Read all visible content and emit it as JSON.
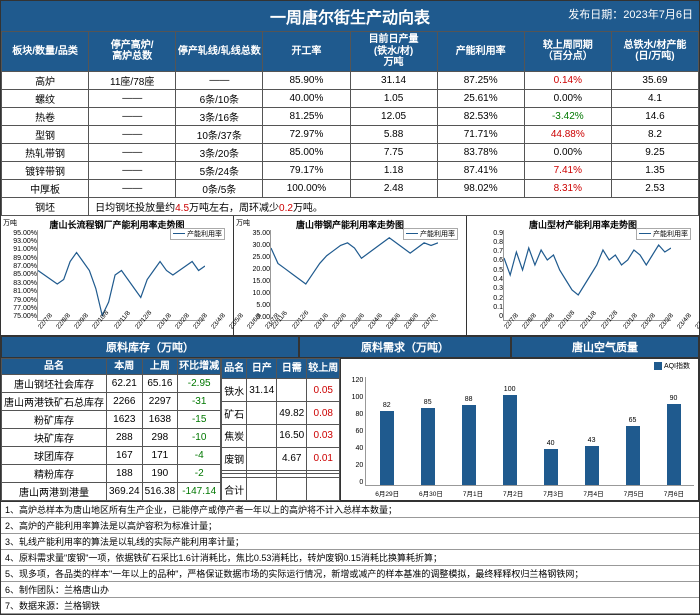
{
  "title": "一周唐尔街生产动向表",
  "pubdate_label": "发布日期：",
  "pubdate": "2023年7月6日",
  "main_table": {
    "headers": [
      "板块/数量/品类",
      "停产高炉/\n高炉总数",
      "停产轧线/轧线总数",
      "开工率",
      "目前日产量\n(铁水/材)\n万吨",
      "产能利用率",
      "较上周同期\n（百分点）",
      "总铁水/材产能\n(日/万吨)"
    ],
    "rows": [
      {
        "c": [
          "高炉",
          "11座/78座",
          "——",
          "85.90%",
          "31.14",
          "87.25%",
          "0.14%",
          "35.69"
        ],
        "col6_color": "red"
      },
      {
        "c": [
          "螺纹",
          "——",
          "6条/10条",
          "40.00%",
          "1.05",
          "25.61%",
          "0.00%",
          "4.1"
        ],
        "col6_color": ""
      },
      {
        "c": [
          "热卷",
          "——",
          "3条/16条",
          "81.25%",
          "12.05",
          "82.53%",
          "-3.42%",
          "14.6"
        ],
        "col6_color": "green"
      },
      {
        "c": [
          "型钢",
          "——",
          "10条/37条",
          "72.97%",
          "5.88",
          "71.71%",
          "44.88%",
          "8.2"
        ],
        "col6_color": "red"
      },
      {
        "c": [
          "热轧带钢",
          "——",
          "3条/20条",
          "85.00%",
          "7.75",
          "83.78%",
          "0.00%",
          "9.25"
        ],
        "col6_color": ""
      },
      {
        "c": [
          "镀锌带钢",
          "——",
          "5条/24条",
          "79.17%",
          "1.18",
          "87.41%",
          "7.41%",
          "1.35"
        ],
        "col6_color": "red"
      },
      {
        "c": [
          "中厚板",
          "——",
          "0条/5条",
          "100.00%",
          "2.48",
          "98.02%",
          "8.31%",
          "2.53"
        ],
        "col6_color": "red"
      }
    ],
    "footer_label": "钢坯",
    "footer_text": "日均钢坯投放量约4.5万吨左右，周环减少0.2万吨。"
  },
  "chart1": {
    "title": "唐山长流程钢厂产能利用率走势图",
    "legend": "产能利用率",
    "yunit": "万吨",
    "ylabels": [
      "95.00%",
      "93.00%",
      "91.00%",
      "89.00%",
      "87.00%",
      "85.00%",
      "83.00%",
      "81.00%",
      "79.00%",
      "77.00%",
      "75.00%"
    ],
    "xlabels": [
      "22/7/8",
      "22/8/8",
      "22/9/8",
      "22/10/8",
      "22/11/8",
      "22/12/8",
      "23/1/8",
      "23/2/8",
      "23/3/8",
      "23/4/8",
      "23/5/8",
      "23/6/8",
      "23/7/8"
    ],
    "points": [
      86,
      85,
      84,
      83,
      84,
      88,
      90,
      88,
      86,
      82,
      76,
      79,
      85,
      86,
      84,
      82,
      80,
      84,
      86,
      88,
      86,
      85,
      86,
      87,
      88,
      86,
      87
    ],
    "ymin": 75,
    "ymax": 95,
    "line_color": "#1f5a8e"
  },
  "chart2": {
    "title": "唐山带钢产能利用率走势图",
    "legend": "产能利用率",
    "yunit": "万吨",
    "ylabels": [
      "35.00",
      "30.00",
      "25.00",
      "20.00",
      "15.00",
      "10.00",
      "5.00",
      "0.00"
    ],
    "xlabels": [
      "22/11/6",
      "22/12/6",
      "23/1/6",
      "23/2/6",
      "23/3/6",
      "23/4/6",
      "23/5/6",
      "23/6/6",
      "23/7/6"
    ],
    "points": [
      28,
      22,
      20,
      18,
      16,
      14,
      18,
      22,
      25,
      27,
      29,
      30,
      28,
      24,
      26,
      28,
      30,
      32,
      30,
      28,
      26,
      28,
      30,
      29,
      30
    ],
    "ymin": 0,
    "ymax": 35,
    "line_color": "#1f5a8e"
  },
  "chart3": {
    "title": "唐山型材产能利用率走势图",
    "legend": "产能利用率",
    "yunit": "",
    "ylabels": [
      "0.9",
      "0.8",
      "0.7",
      "0.6",
      "0.5",
      "0.4",
      "0.3",
      "0.2",
      "0.1",
      "0"
    ],
    "xlabels": [
      "22/7/8",
      "22/8/8",
      "22/9/8",
      "22/10/8",
      "22/11/8",
      "22/12/8",
      "23/1/8",
      "23/2/8",
      "23/3/8",
      "23/4/8",
      "23/5/8",
      "23/6/8",
      "23/7/8"
    ],
    "points": [
      0.62,
      0.45,
      0.68,
      0.5,
      0.72,
      0.55,
      0.7,
      0.6,
      0.65,
      0.5,
      0.4,
      0.3,
      0.25,
      0.35,
      0.45,
      0.55,
      0.7,
      0.6,
      0.65,
      0.55,
      0.6,
      0.7,
      0.65,
      0.55,
      0.65,
      0.75,
      0.68,
      0.72
    ],
    "ymin": 0,
    "ymax": 0.9,
    "line_color": "#1f5a8e"
  },
  "section_headers": [
    "原料库存（万吨）",
    "原料需求（万吨）",
    "唐山空气质量"
  ],
  "inventory": {
    "headers": [
      "品名",
      "本周",
      "上周",
      "环比增减"
    ],
    "rows": [
      [
        "唐山钢坯社会库存",
        "62.21",
        "65.16",
        "-2.95"
      ],
      [
        "唐山两港铁矿石总库存",
        "2266",
        "2297",
        "-31"
      ],
      [
        "粉矿库存",
        "1623",
        "1638",
        "-15"
      ],
      [
        "块矿库存",
        "288",
        "298",
        "-10"
      ],
      [
        "球团库存",
        "167",
        "171",
        "-4"
      ],
      [
        "精粉库存",
        "188",
        "190",
        "-2"
      ],
      [
        "唐山两港到港量",
        "369.24",
        "516.38",
        "-147.14"
      ]
    ]
  },
  "demand": {
    "headers": [
      "品名",
      "日产",
      "日需",
      "较上周"
    ],
    "rows": [
      [
        "铁水",
        "31.14",
        "",
        "0.05"
      ],
      [
        "矿石",
        "",
        "49.82",
        "0.08"
      ],
      [
        "焦炭",
        "",
        "16.50",
        "0.03"
      ],
      [
        "废钢",
        "",
        "4.67",
        "0.01"
      ],
      [
        "",
        "",
        "",
        ""
      ],
      [
        "",
        "",
        "",
        ""
      ],
      [
        "合计",
        "",
        "",
        ""
      ]
    ]
  },
  "aqi": {
    "legend": "AQI指数",
    "ylabels": [
      "120",
      "100",
      "80",
      "60",
      "40",
      "20",
      "0"
    ],
    "bars": [
      {
        "label": "6月29日",
        "v": 82
      },
      {
        "label": "6月30日",
        "v": 85
      },
      {
        "label": "7月1日",
        "v": 88
      },
      {
        "label": "7月2日",
        "v": 100
      },
      {
        "label": "7月3日",
        "v": 40
      },
      {
        "label": "7月4日",
        "v": 43
      },
      {
        "label": "7月5日",
        "v": 65
      },
      {
        "label": "7月6日",
        "v": 90
      }
    ],
    "ymax": 120,
    "bar_color": "#1f5a8e"
  },
  "notes": [
    "1、高炉总样本为唐山地区所有生产企业，已能停产或停产者一年以上的高炉将不计入总样本数量；",
    "2、高炉的产能利用率算法是以高炉容积为标准计量；",
    "3、轧线产能利用率的算法是以轧线的实际产能利用率计量；",
    "4、原料需求量\"废钢\"一项，依据铁矿石采比1.6计消耗比，焦比0.53消耗比，转炉废钢0.15消耗比换算耗折算；",
    "5、现多项，各品类的样本\"一年以上的品种\"，严格保证数据市场的实际运行情况，新增或减产的样本基准的调整模拟，最终释释权归兰格钢铁网；",
    "6、制作团队：兰格唐山办",
    "7、数据来源：兰格钢铁"
  ]
}
